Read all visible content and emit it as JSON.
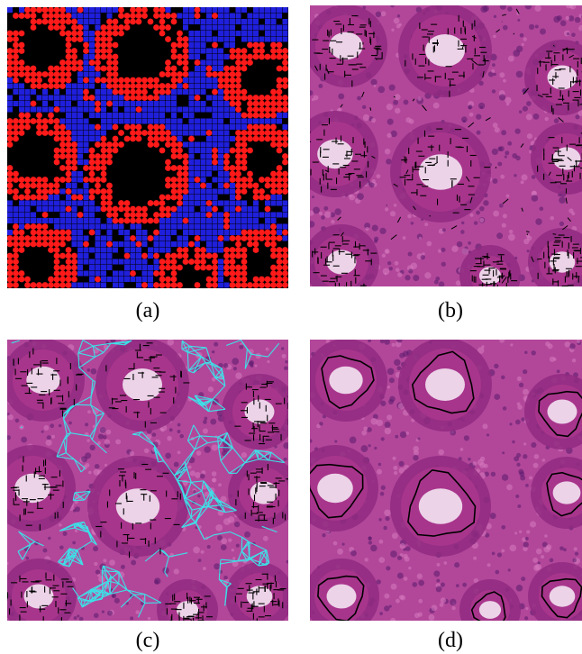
{
  "figure": {
    "panels": [
      {
        "id": "a",
        "caption": "(a)",
        "content": "red-blue-node-grid"
      },
      {
        "id": "b",
        "caption": "(b)",
        "content": "tissue-with-black-graph"
      },
      {
        "id": "c",
        "caption": "(c)",
        "content": "tissue-with-cyan-mesh"
      },
      {
        "id": "d",
        "caption": "(d)",
        "content": "tissue-with-gland-outlines"
      }
    ]
  },
  "colors": {
    "node_red": "#ff1a1a",
    "node_blue": "#1f1fdc",
    "background_black": "#000000",
    "tissue_purple": "#a8358c",
    "mesh_cyan": "#3ee0e8",
    "outline_black": "#000000"
  }
}
